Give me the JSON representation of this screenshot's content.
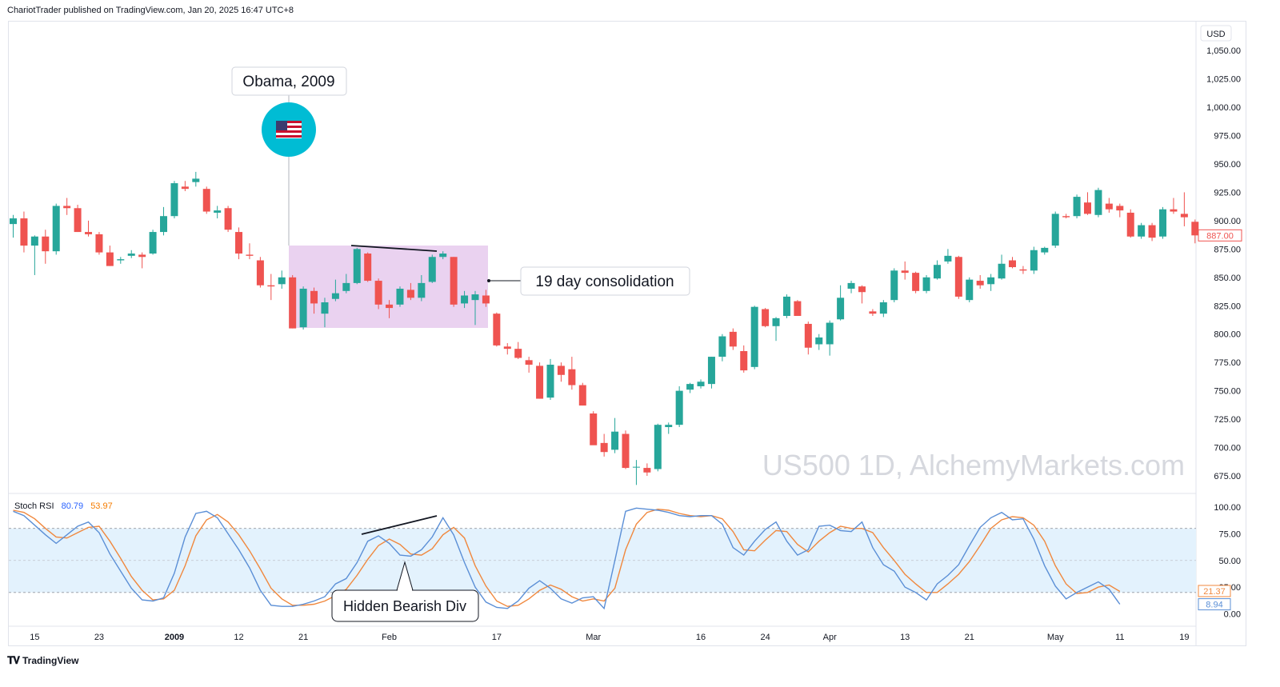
{
  "header": {
    "published": "ChariotTrader published on TradingView.com, Jan 20, 2025 16:47 UTC+8"
  },
  "footer": {
    "brand": "TradingView"
  },
  "watermark": "US500 1D, AlchemyMarkets.com",
  "annotations": {
    "event": "Obama, 2009",
    "consolidation": "19 day consolidation",
    "divergence": "Hidden Bearish Div"
  },
  "price_axis": {
    "currency": "USD",
    "ticks": [
      "675.00",
      "700.00",
      "725.00",
      "750.00",
      "775.00",
      "800.00",
      "825.00",
      "850.00",
      "875.00",
      "900.00",
      "925.00",
      "950.00",
      "975.00",
      "1,000.00",
      "1,025.00",
      "1,050.00"
    ],
    "last_price": "887.00"
  },
  "time_axis": {
    "labels": [
      {
        "text": "15",
        "bar": 2
      },
      {
        "text": "23",
        "bar": 8
      },
      {
        "text": "2009",
        "bar": 15
      },
      {
        "text": "12",
        "bar": 21
      },
      {
        "text": "21",
        "bar": 27
      },
      {
        "text": "Feb",
        "bar": 35
      },
      {
        "text": "17",
        "bar": 45
      },
      {
        "text": "Mar",
        "bar": 54
      },
      {
        "text": "16",
        "bar": 64
      },
      {
        "text": "24",
        "bar": 70
      },
      {
        "text": "Apr",
        "bar": 76
      },
      {
        "text": "13",
        "bar": 83
      },
      {
        "text": "21",
        "bar": 89
      },
      {
        "text": "May",
        "bar": 97
      },
      {
        "text": "11",
        "bar": 103
      },
      {
        "text": "19",
        "bar": 109
      }
    ]
  },
  "indicator": {
    "name": "Stoch RSI",
    "k_value": "80.79",
    "d_value": "53.97",
    "k_last": "8.94",
    "d_last": "21.37",
    "ticks": [
      "0.00",
      "25.00",
      "50.00",
      "75.00",
      "100.00"
    ],
    "band": [
      20,
      80
    ]
  },
  "colors": {
    "up": "#26a69a",
    "down": "#ef5350",
    "k_line": "#5b8fd6",
    "d_line": "#f0883e",
    "consolidation_box": "#ead2f0",
    "rsi_band": "#e3f2fd",
    "flag_circle": "#00bcd4"
  },
  "chart_data": {
    "type": "candlestick",
    "ylim": [
      662,
      1058
    ],
    "candles": [
      {
        "o": 897,
        "h": 905,
        "l": 885,
        "c": 902
      },
      {
        "o": 902,
        "h": 908,
        "l": 872,
        "c": 878
      },
      {
        "o": 878,
        "h": 887,
        "l": 852,
        "c": 886
      },
      {
        "o": 886,
        "h": 892,
        "l": 862,
        "c": 873
      },
      {
        "o": 873,
        "h": 915,
        "l": 870,
        "c": 913
      },
      {
        "o": 913,
        "h": 920,
        "l": 905,
        "c": 911
      },
      {
        "o": 911,
        "h": 914,
        "l": 890,
        "c": 890
      },
      {
        "o": 890,
        "h": 900,
        "l": 886,
        "c": 888
      },
      {
        "o": 888,
        "h": 890,
        "l": 870,
        "c": 872
      },
      {
        "o": 872,
        "h": 878,
        "l": 860,
        "c": 860
      },
      {
        "o": 865,
        "h": 868,
        "l": 862,
        "c": 866
      },
      {
        "o": 869,
        "h": 874,
        "l": 867,
        "c": 871
      },
      {
        "o": 870,
        "h": 872,
        "l": 858,
        "c": 868
      },
      {
        "o": 871,
        "h": 892,
        "l": 870,
        "c": 890
      },
      {
        "o": 890,
        "h": 912,
        "l": 887,
        "c": 904
      },
      {
        "o": 904,
        "h": 935,
        "l": 902,
        "c": 933
      },
      {
        "o": 930,
        "h": 935,
        "l": 926,
        "c": 928
      },
      {
        "o": 934,
        "h": 943,
        "l": 930,
        "c": 937
      },
      {
        "o": 928,
        "h": 930,
        "l": 906,
        "c": 908
      },
      {
        "o": 907,
        "h": 913,
        "l": 902,
        "c": 909
      },
      {
        "o": 911,
        "h": 913,
        "l": 890,
        "c": 892
      },
      {
        "o": 890,
        "h": 894,
        "l": 866,
        "c": 871
      },
      {
        "o": 870,
        "h": 880,
        "l": 866,
        "c": 869
      },
      {
        "o": 865,
        "h": 868,
        "l": 841,
        "c": 843
      },
      {
        "o": 843,
        "h": 853,
        "l": 830,
        "c": 842
      },
      {
        "o": 844,
        "h": 856,
        "l": 840,
        "c": 850
      },
      {
        "o": 850,
        "h": 852,
        "l": 805,
        "c": 805
      },
      {
        "o": 806,
        "h": 842,
        "l": 804,
        "c": 840
      },
      {
        "o": 838,
        "h": 841,
        "l": 818,
        "c": 827
      },
      {
        "o": 818,
        "h": 832,
        "l": 806,
        "c": 828
      },
      {
        "o": 831,
        "h": 848,
        "l": 829,
        "c": 836
      },
      {
        "o": 838,
        "h": 853,
        "l": 836,
        "c": 845
      },
      {
        "o": 845,
        "h": 876,
        "l": 844,
        "c": 875
      },
      {
        "o": 871,
        "h": 872,
        "l": 846,
        "c": 847
      },
      {
        "o": 847,
        "h": 849,
        "l": 822,
        "c": 826
      },
      {
        "o": 826,
        "h": 830,
        "l": 814,
        "c": 823
      },
      {
        "o": 826,
        "h": 842,
        "l": 824,
        "c": 840
      },
      {
        "o": 839,
        "h": 845,
        "l": 830,
        "c": 832
      },
      {
        "o": 832,
        "h": 852,
        "l": 829,
        "c": 845
      },
      {
        "o": 846,
        "h": 870,
        "l": 845,
        "c": 868
      },
      {
        "o": 868,
        "h": 873,
        "l": 866,
        "c": 871
      },
      {
        "o": 868,
        "h": 868,
        "l": 824,
        "c": 826
      },
      {
        "o": 827,
        "h": 838,
        "l": 823,
        "c": 834
      },
      {
        "o": 830,
        "h": 838,
        "l": 808,
        "c": 835
      },
      {
        "o": 834,
        "h": 839,
        "l": 824,
        "c": 827
      },
      {
        "o": 818,
        "h": 819,
        "l": 789,
        "c": 790
      },
      {
        "o": 789,
        "h": 792,
        "l": 782,
        "c": 787
      },
      {
        "o": 787,
        "h": 793,
        "l": 778,
        "c": 779
      },
      {
        "o": 777,
        "h": 780,
        "l": 766,
        "c": 773
      },
      {
        "o": 772,
        "h": 775,
        "l": 743,
        "c": 743
      },
      {
        "o": 744,
        "h": 778,
        "l": 742,
        "c": 773
      },
      {
        "o": 772,
        "h": 775,
        "l": 758,
        "c": 764
      },
      {
        "o": 769,
        "h": 780,
        "l": 751,
        "c": 755
      },
      {
        "o": 755,
        "h": 757,
        "l": 737,
        "c": 737
      },
      {
        "o": 730,
        "h": 732,
        "l": 703,
        "c": 702
      },
      {
        "o": 704,
        "h": 712,
        "l": 692,
        "c": 696
      },
      {
        "o": 698,
        "h": 726,
        "l": 695,
        "c": 714
      },
      {
        "o": 712,
        "h": 715,
        "l": 681,
        "c": 682
      },
      {
        "o": 683,
        "h": 689,
        "l": 667,
        "c": 683
      },
      {
        "o": 682,
        "h": 686,
        "l": 675,
        "c": 678
      },
      {
        "o": 681,
        "h": 721,
        "l": 679,
        "c": 720
      },
      {
        "o": 718,
        "h": 722,
        "l": 712,
        "c": 720
      },
      {
        "o": 720,
        "h": 754,
        "l": 718,
        "c": 750
      },
      {
        "o": 751,
        "h": 757,
        "l": 748,
        "c": 756
      },
      {
        "o": 754,
        "h": 760,
        "l": 752,
        "c": 758
      },
      {
        "o": 756,
        "h": 780,
        "l": 752,
        "c": 780
      },
      {
        "o": 780,
        "h": 800,
        "l": 776,
        "c": 798
      },
      {
        "o": 802,
        "h": 805,
        "l": 786,
        "c": 789
      },
      {
        "o": 785,
        "h": 790,
        "l": 766,
        "c": 768
      },
      {
        "o": 771,
        "h": 825,
        "l": 769,
        "c": 824
      },
      {
        "o": 822,
        "h": 823,
        "l": 806,
        "c": 807
      },
      {
        "o": 807,
        "h": 815,
        "l": 794,
        "c": 814
      },
      {
        "o": 816,
        "h": 835,
        "l": 814,
        "c": 833
      },
      {
        "o": 829,
        "h": 830,
        "l": 816,
        "c": 816
      },
      {
        "o": 809,
        "h": 811,
        "l": 782,
        "c": 788
      },
      {
        "o": 791,
        "h": 800,
        "l": 786,
        "c": 797
      },
      {
        "o": 791,
        "h": 812,
        "l": 781,
        "c": 810
      },
      {
        "o": 813,
        "h": 843,
        "l": 812,
        "c": 832
      },
      {
        "o": 840,
        "h": 847,
        "l": 836,
        "c": 845
      },
      {
        "o": 842,
        "h": 843,
        "l": 827,
        "c": 837
      },
      {
        "o": 820,
        "h": 822,
        "l": 816,
        "c": 818
      },
      {
        "o": 818,
        "h": 830,
        "l": 815,
        "c": 828
      },
      {
        "o": 830,
        "h": 858,
        "l": 828,
        "c": 856
      },
      {
        "o": 856,
        "h": 864,
        "l": 848,
        "c": 854
      },
      {
        "o": 854,
        "h": 855,
        "l": 836,
        "c": 838
      },
      {
        "o": 838,
        "h": 852,
        "l": 836,
        "c": 850
      },
      {
        "o": 849,
        "h": 865,
        "l": 848,
        "c": 861
      },
      {
        "o": 864,
        "h": 875,
        "l": 862,
        "c": 869
      },
      {
        "o": 868,
        "h": 869,
        "l": 831,
        "c": 833
      },
      {
        "o": 830,
        "h": 850,
        "l": 828,
        "c": 848
      },
      {
        "o": 847,
        "h": 852,
        "l": 840,
        "c": 843
      },
      {
        "o": 844,
        "h": 853,
        "l": 838,
        "c": 850
      },
      {
        "o": 849,
        "h": 870,
        "l": 848,
        "c": 862
      },
      {
        "o": 865,
        "h": 868,
        "l": 858,
        "c": 859
      },
      {
        "o": 857,
        "h": 860,
        "l": 853,
        "c": 856
      },
      {
        "o": 856,
        "h": 877,
        "l": 853,
        "c": 874
      },
      {
        "o": 872,
        "h": 877,
        "l": 870,
        "c": 876
      },
      {
        "o": 878,
        "h": 908,
        "l": 876,
        "c": 906
      },
      {
        "o": 904,
        "h": 906,
        "l": 902,
        "c": 903
      },
      {
        "o": 904,
        "h": 923,
        "l": 902,
        "c": 921
      },
      {
        "o": 916,
        "h": 925,
        "l": 905,
        "c": 906
      },
      {
        "o": 905,
        "h": 929,
        "l": 903,
        "c": 927
      },
      {
        "o": 915,
        "h": 920,
        "l": 907,
        "c": 910
      },
      {
        "o": 913,
        "h": 915,
        "l": 903,
        "c": 909
      },
      {
        "o": 907,
        "h": 910,
        "l": 885,
        "c": 886
      },
      {
        "o": 886,
        "h": 898,
        "l": 884,
        "c": 896
      },
      {
        "o": 896,
        "h": 898,
        "l": 882,
        "c": 885
      },
      {
        "o": 886,
        "h": 912,
        "l": 884,
        "c": 910
      },
      {
        "o": 910,
        "h": 920,
        "l": 906,
        "c": 908
      },
      {
        "o": 906,
        "h": 925,
        "l": 895,
        "c": 903
      },
      {
        "o": 899,
        "h": 901,
        "l": 880,
        "c": 887
      }
    ],
    "stoch_k": [
      96,
      92,
      83,
      74,
      66,
      74,
      82,
      86,
      76,
      56,
      40,
      24,
      13,
      12,
      15,
      38,
      72,
      94,
      96,
      90,
      75,
      60,
      43,
      22,
      8,
      7,
      7,
      9,
      12,
      16,
      28,
      33,
      48,
      68,
      73,
      66,
      55,
      54,
      60,
      72,
      90,
      74,
      48,
      25,
      11,
      6,
      5,
      12,
      24,
      31,
      24,
      14,
      10,
      15,
      16,
      5,
      50,
      96,
      99,
      98,
      97,
      95,
      92,
      91,
      92,
      92,
      84,
      62,
      55,
      68,
      79,
      86,
      68,
      55,
      60,
      82,
      83,
      78,
      77,
      86,
      62,
      46,
      40,
      25,
      20,
      13,
      28,
      36,
      46,
      64,
      81,
      90,
      95,
      88,
      89,
      70,
      45,
      26,
      14,
      20,
      25,
      30,
      23,
      9
    ],
    "stoch_d": [
      97,
      95,
      89,
      80,
      72,
      71,
      76,
      81,
      82,
      68,
      52,
      35,
      22,
      13,
      14,
      22,
      45,
      73,
      88,
      93,
      86,
      74,
      59,
      42,
      24,
      14,
      8,
      8,
      9,
      12,
      17,
      23,
      36,
      51,
      64,
      70,
      65,
      56,
      55,
      61,
      74,
      81,
      71,
      45,
      26,
      12,
      7,
      8,
      14,
      22,
      27,
      23,
      16,
      12,
      14,
      12,
      24,
      60,
      84,
      95,
      98,
      97,
      94,
      92,
      91,
      92,
      89,
      77,
      60,
      59,
      69,
      78,
      77,
      65,
      58,
      68,
      76,
      82,
      80,
      80,
      76,
      62,
      50,
      37,
      28,
      20,
      20,
      28,
      37,
      49,
      64,
      80,
      88,
      91,
      90,
      83,
      68,
      45,
      28,
      19,
      20,
      25,
      27,
      21
    ]
  }
}
